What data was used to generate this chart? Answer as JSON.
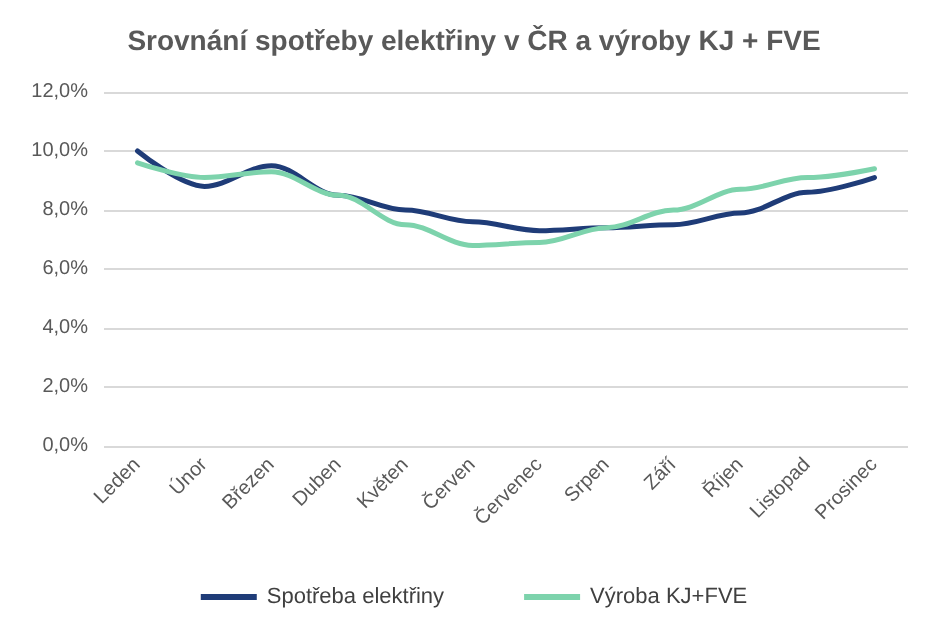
{
  "chart_data": {
    "type": "line",
    "title": "Srovnání spotřeby elektřiny v ČR a výroby KJ + FVE",
    "categories": [
      "Leden",
      "Únor",
      "Březen",
      "Duben",
      "Květen",
      "Červen",
      "Červenec",
      "Srpen",
      "Září",
      "Říjen",
      "Listopad",
      "Prosinec"
    ],
    "series": [
      {
        "name": "Spotřeba elektřiny",
        "color": "#1f3c78",
        "values": [
          10.0,
          8.8,
          9.5,
          8.5,
          8.0,
          7.6,
          7.3,
          7.4,
          7.5,
          7.9,
          8.6,
          9.1
        ]
      },
      {
        "name": "Výroba KJ+FVE",
        "color": "#7dd3ac",
        "values": [
          9.6,
          9.1,
          9.3,
          8.5,
          7.5,
          6.8,
          6.9,
          7.4,
          8.0,
          8.7,
          9.1,
          9.4
        ]
      }
    ],
    "ylim": [
      0,
      12
    ],
    "yticks": [
      {
        "value": 0,
        "label": "0,0%"
      },
      {
        "value": 2,
        "label": "2,0%"
      },
      {
        "value": 4,
        "label": "4,0%"
      },
      {
        "value": 6,
        "label": "6,0%"
      },
      {
        "value": 8,
        "label": "8,0%"
      },
      {
        "value": 10,
        "label": "10,0%"
      },
      {
        "value": 12,
        "label": "12,0%"
      }
    ],
    "grid": "y",
    "legend": "bottom",
    "marker": "none",
    "line_style": "solid"
  }
}
